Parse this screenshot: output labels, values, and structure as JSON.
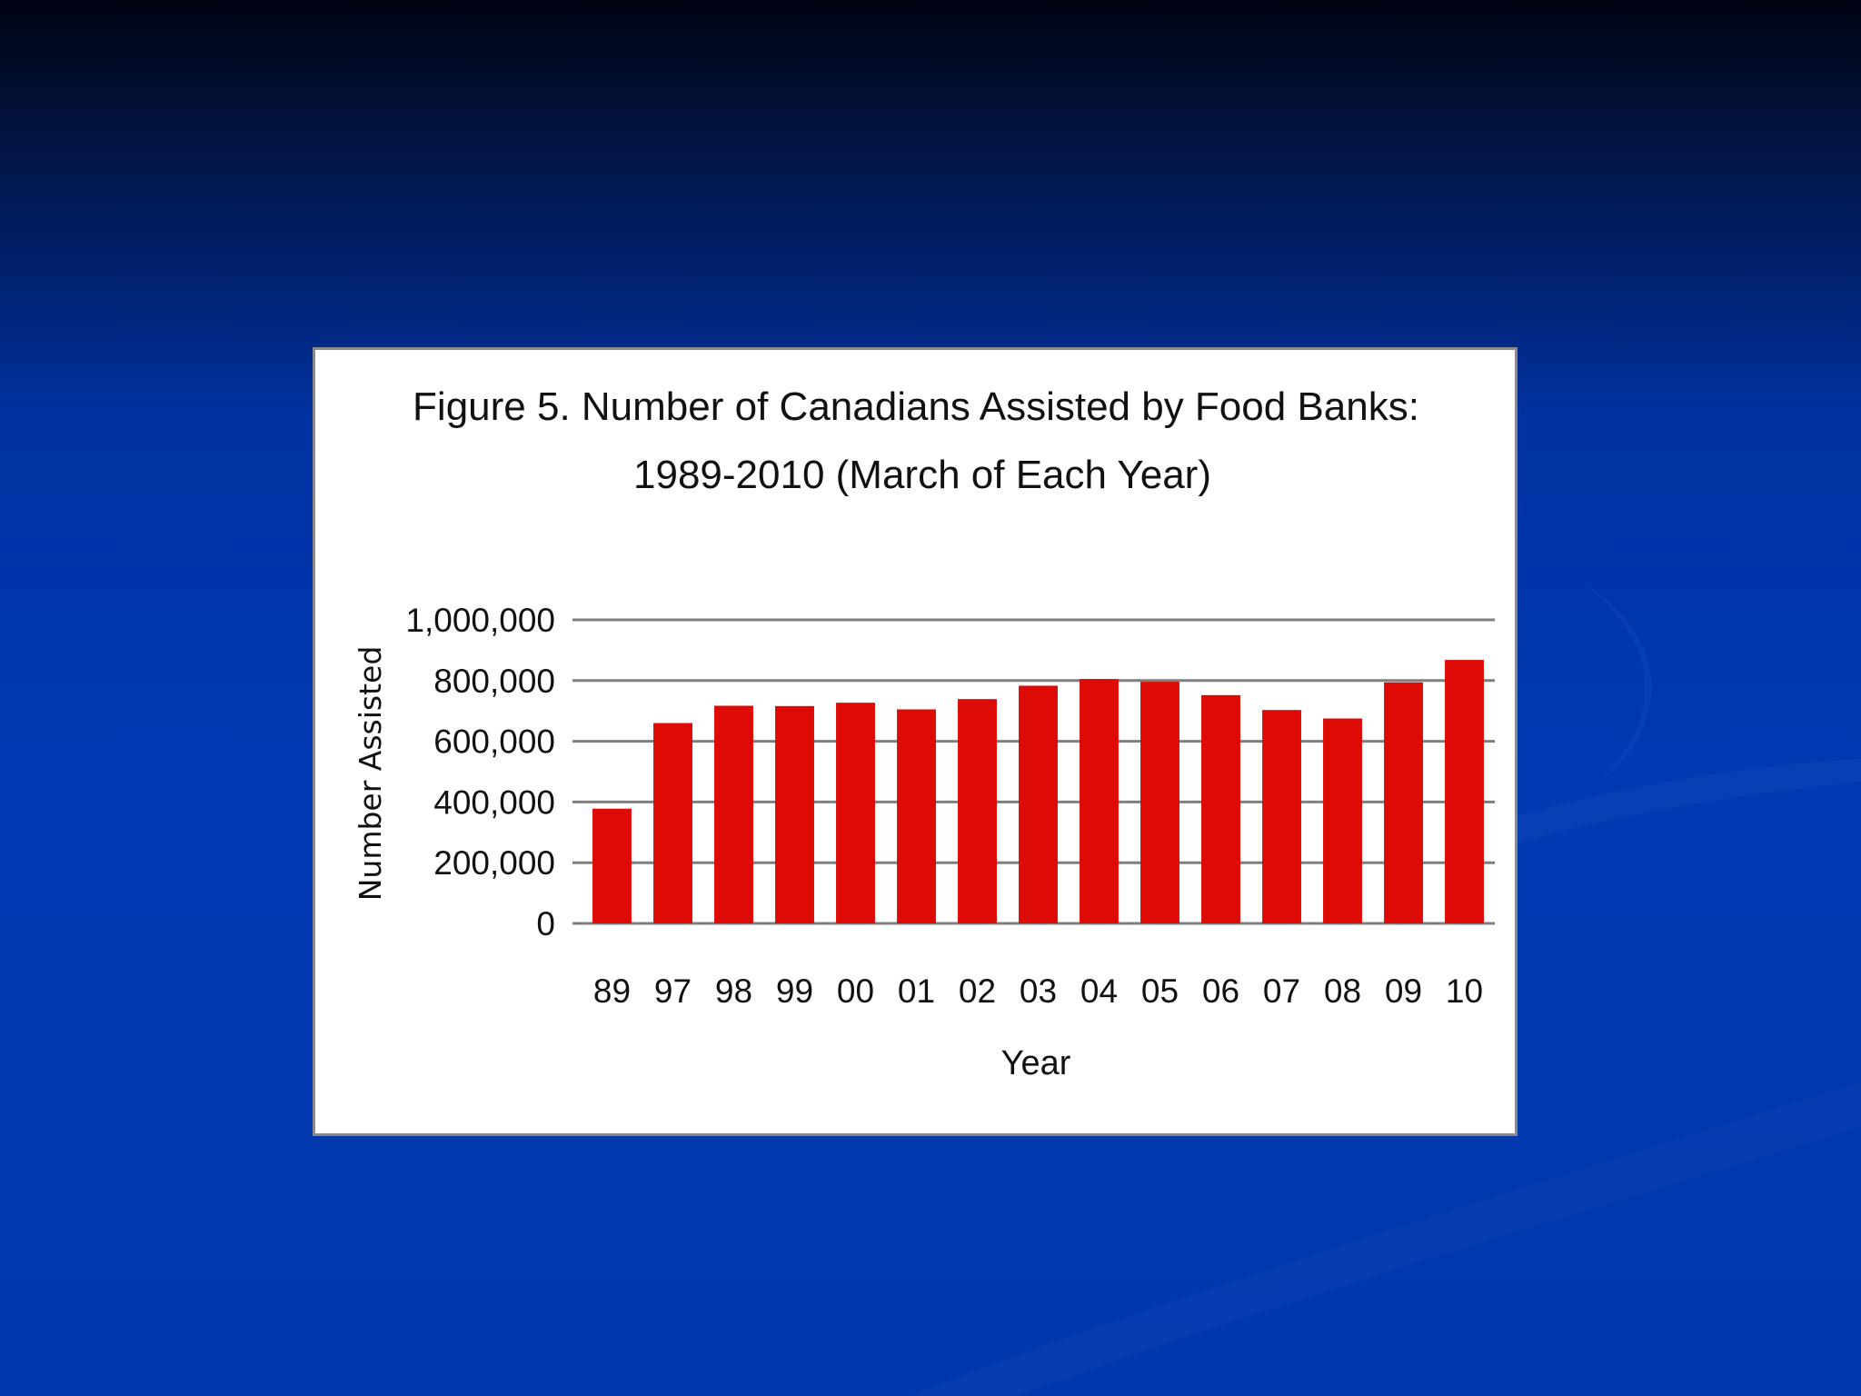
{
  "colors": {
    "bar": "#dd0a05",
    "gridline": "#7f7f7f",
    "panel_border": "#8a8a8a"
  },
  "chart_data": {
    "type": "bar",
    "title_lines": [
      "Figure 5. Number of Canadians Assisted by Food Banks:",
      "1989-2010 (March of Each Year)"
    ],
    "xlabel": "Year",
    "ylabel": "Number Assisted",
    "categories": [
      "89",
      "97",
      "98",
      "99",
      "00",
      "01",
      "02",
      "03",
      "04",
      "05",
      "06",
      "07",
      "08",
      "09",
      "10"
    ],
    "values": [
      378000,
      660000,
      717000,
      716000,
      727000,
      705000,
      739000,
      783000,
      805000,
      796000,
      752000,
      703000,
      675000,
      794000,
      868000
    ],
    "ylim": [
      0,
      1000000
    ],
    "yticks": [
      0,
      200000,
      400000,
      600000,
      800000,
      1000000
    ],
    "ytick_labels": [
      "0",
      "200,000",
      "400,000",
      "600,000",
      "800,000",
      "1,000,000"
    ],
    "grid": true,
    "legend": "none"
  }
}
